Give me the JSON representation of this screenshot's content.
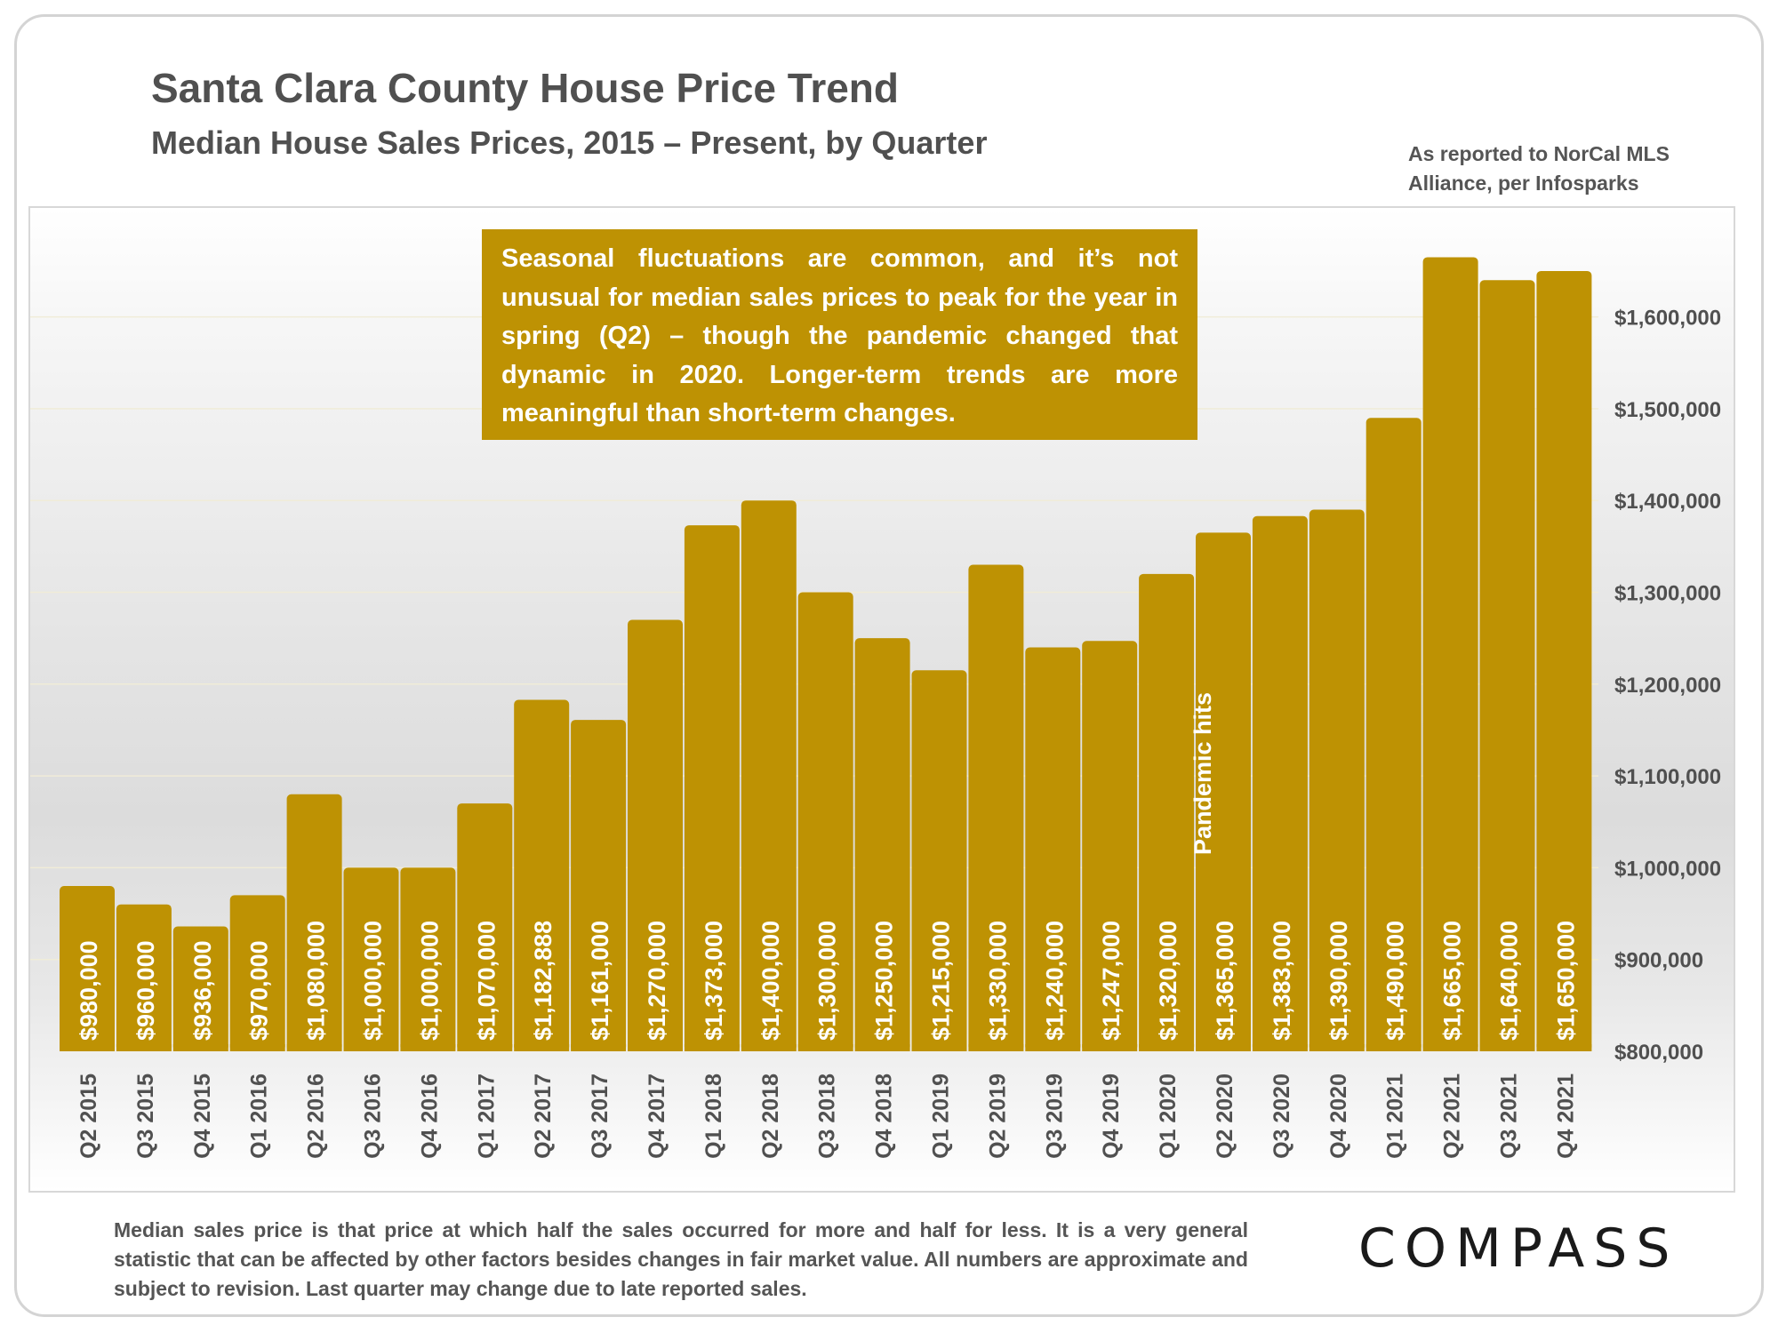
{
  "header": {
    "title": "Santa Clara County House Price Trend",
    "subtitle": "Median House Sales Prices, 2015 – Present, by Quarter",
    "source_note": "As reported to NorCal MLS Alliance, per Infosparks"
  },
  "callout": {
    "text": "Seasonal fluctuations are common, and it’s not unusual for median sales prices to peak for the year in spring (Q2) – though the pandemic changed that dynamic in 2020. Longer-term trends are more meaningful than short-term changes."
  },
  "footer": {
    "text": "Median sales price is that price at which half the sales occurred for more and half for less. It is a very general statistic that can be affected by other factors besides changes in fair market value. All numbers are approximate and subject to revision. Last quarter may change due to late reported sales.",
    "logo": "COMPASS"
  },
  "colors": {
    "bar": "#be9203",
    "text": "#505050",
    "label": "#ffffff"
  },
  "chart_data": {
    "type": "bar",
    "categories": [
      "Q2 2015",
      "Q3 2015",
      "Q4 2015",
      "Q1 2016",
      "Q2 2016",
      "Q3 2016",
      "Q4 2016",
      "Q1 2017",
      "Q2 2017",
      "Q3 2017",
      "Q4 2017",
      "Q1 2018",
      "Q2 2018",
      "Q3 2018",
      "Q4 2018",
      "Q1 2019",
      "Q2 2019",
      "Q3 2019",
      "Q4 2019",
      "Q1 2020",
      "Q2 2020",
      "Q3 2020",
      "Q4 2020",
      "Q1 2021",
      "Q2 2021",
      "Q3 2021",
      "Q4 2021"
    ],
    "values": [
      980000,
      960000,
      936000,
      970000,
      1080000,
      1000000,
      1000000,
      1070000,
      1182888,
      1161000,
      1270000,
      1373000,
      1400000,
      1300000,
      1250000,
      1215000,
      1330000,
      1240000,
      1247000,
      1320000,
      1365000,
      1383000,
      1390000,
      1490000,
      1665000,
      1640000,
      1650000
    ],
    "data_labels": [
      "$980,000",
      "$960,000",
      "$936,000",
      "$970,000",
      "$1,080,000",
      "$1,000,000",
      "$1,000,000",
      "$1,070,000",
      "$1,182,888",
      "$1,161,000",
      "$1,270,000",
      "$1,373,000",
      "$1,400,000",
      "$1,300,000",
      "$1,250,000",
      "$1,215,000",
      "$1,330,000",
      "$1,240,000",
      "$1,247,000",
      "$1,320,000",
      "$1,365,000",
      "$1,383,000",
      "$1,390,000",
      "$1,490,000",
      "$1,665,000",
      "$1,640,000",
      "$1,650,000"
    ],
    "ylim": [
      800000,
      1700000
    ],
    "yticks": [
      800000,
      900000,
      1000000,
      1100000,
      1200000,
      1300000,
      1400000,
      1500000,
      1600000
    ],
    "ytick_labels": [
      "$800,000",
      "$900,000",
      "$1,000,000",
      "$1,100,000",
      "$1,200,000",
      "$1,300,000",
      "$1,400,000",
      "$1,500,000",
      "$1,600,000"
    ],
    "y_axis_side": "right",
    "grid": true,
    "legend": "none",
    "annotations": [
      {
        "category": "Q1 2020",
        "text": "Pandemic hits"
      }
    ]
  }
}
